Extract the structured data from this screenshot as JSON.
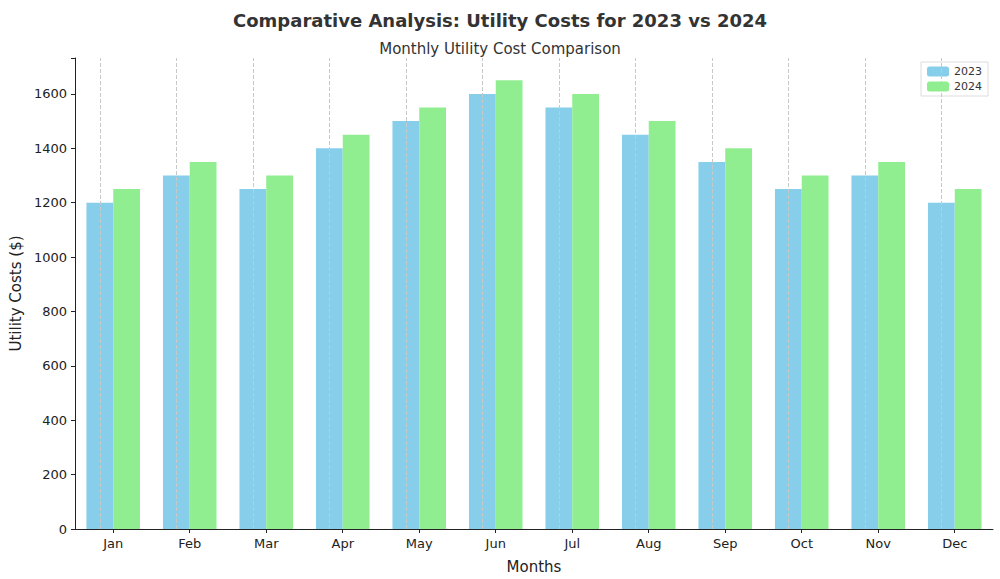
{
  "chart_data": {
    "type": "bar",
    "title": "Comparative Analysis: Utility Costs for 2023 vs 2024",
    "subtitle": "Monthly Utility Cost Comparison",
    "x_label": "Months",
    "y_label": "Utility Costs ($)",
    "categories": [
      "Jan",
      "Feb",
      "Mar",
      "Apr",
      "May",
      "Jun",
      "Jul",
      "Aug",
      "Sep",
      "Oct",
      "Nov",
      "Dec"
    ],
    "series": [
      {
        "name": "2023",
        "color": "#87ceeb",
        "values": [
          1200,
          1300,
          1250,
          1400,
          1500,
          1600,
          1550,
          1450,
          1350,
          1250,
          1300,
          1200
        ]
      },
      {
        "name": "2024",
        "color": "#90ee90",
        "values": [
          1250,
          1350,
          1300,
          1450,
          1550,
          1650,
          1600,
          1500,
          1400,
          1300,
          1350,
          1250
        ]
      }
    ],
    "ylim": [
      0,
      1732
    ],
    "yticks": [
      0,
      200,
      400,
      600,
      800,
      1000,
      1200,
      1400,
      1600
    ],
    "grid": true,
    "legend": "upper right"
  }
}
